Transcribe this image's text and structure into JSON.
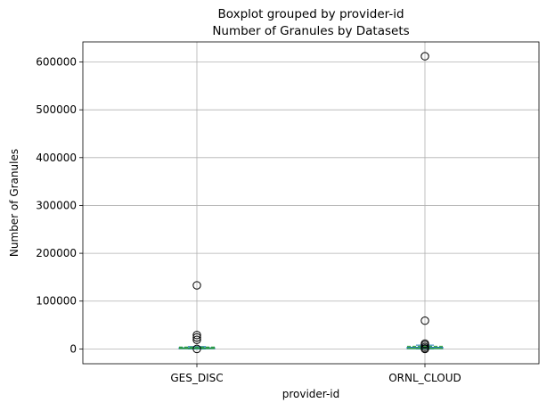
{
  "chart_data": {
    "type": "boxplot",
    "suptitle": "Boxplot grouped by provider-id",
    "title": "Number of Granules by Datasets",
    "xlabel": "provider-id",
    "ylabel": "Number of Granules",
    "ylim": [
      -31000,
      642000
    ],
    "yticks": [
      0,
      100000,
      200000,
      300000,
      400000,
      500000,
      600000
    ],
    "ytick_labels": [
      "0",
      "100000",
      "200000",
      "300000",
      "400000",
      "500000",
      "600000"
    ],
    "grid": true,
    "categories": [
      "GES_DISC",
      "ORNL_CLOUD"
    ],
    "groups": [
      {
        "name": "GES_DISC",
        "q1": 300,
        "median": 1200,
        "q3": 2500,
        "whisker_low": 0,
        "whisker_high": 5000,
        "mean": 4000,
        "fliers": [
          133000,
          29000,
          24000,
          19000,
          0
        ]
      },
      {
        "name": "ORNL_CLOUD",
        "q1": 300,
        "median": 1200,
        "q3": 3500,
        "whisker_low": 0,
        "whisker_high": 8000,
        "mean": 5500,
        "fliers": [
          612000,
          59000,
          11000,
          8000,
          4000,
          1000,
          0
        ]
      }
    ]
  }
}
